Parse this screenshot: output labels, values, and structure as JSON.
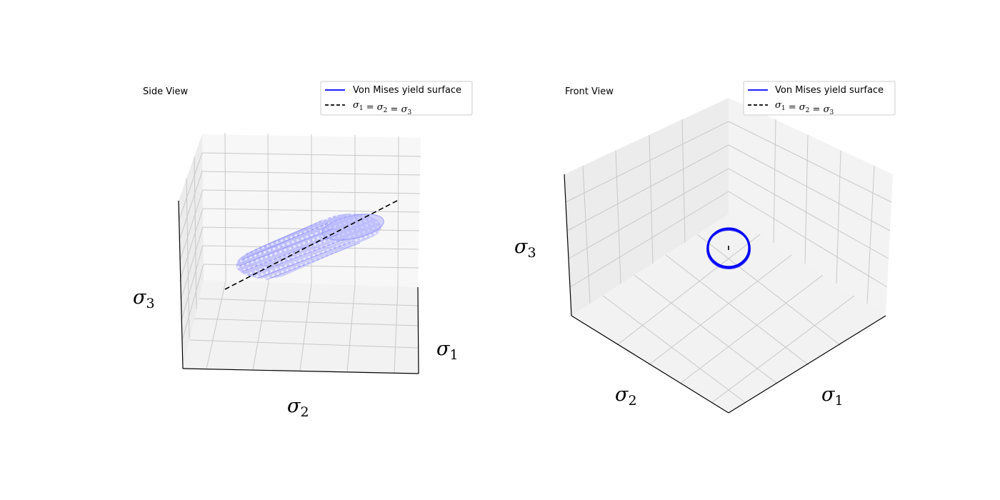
{
  "chart_data": [
    {
      "type": "3d-surface",
      "title": "Side View",
      "xlabel": "σ1",
      "ylabel": "σ2",
      "zlabel": "σ3",
      "legend": {
        "placement": "top-right",
        "entries": [
          {
            "label": "Von Mises yield surface",
            "color": "#0000ff",
            "style": "solid"
          },
          {
            "label": "σ1 = σ2 = σ3",
            "color": "#000000",
            "style": "dashed"
          }
        ]
      },
      "grid": true,
      "tick_labels": false
    },
    {
      "type": "3d-surface",
      "title": "Front View",
      "xlabel": "σ1",
      "ylabel": "σ2",
      "zlabel": "σ3",
      "legend": {
        "placement": "top-right",
        "entries": [
          {
            "label": "Von Mises yield surface",
            "color": "#0000ff",
            "style": "solid"
          },
          {
            "label": "σ1 = σ2 = σ3",
            "color": "#000000",
            "style": "dashed"
          }
        ]
      },
      "grid": true,
      "tick_labels": false
    }
  ],
  "colors": {
    "surface": "#0000ff",
    "hydrostatic_axis": "#000000",
    "pane_fill": "#f2f2f2",
    "grid": "#c8c8c8"
  }
}
